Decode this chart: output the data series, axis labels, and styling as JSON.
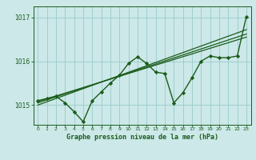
{
  "title": "Graphe pression niveau de la mer (hPa)",
  "bg_color": "#cce8e8",
  "grid_color": "#99cccc",
  "line_color": "#1a5c1a",
  "xlim": [
    -0.5,
    23.5
  ],
  "ylim": [
    1014.55,
    1017.25
  ],
  "yticks": [
    1015,
    1016,
    1017
  ],
  "xticks": [
    0,
    1,
    2,
    3,
    4,
    5,
    6,
    7,
    8,
    9,
    10,
    11,
    12,
    13,
    14,
    15,
    16,
    17,
    18,
    19,
    20,
    21,
    22,
    23
  ],
  "hours": [
    0,
    1,
    2,
    3,
    4,
    5,
    6,
    7,
    8,
    9,
    10,
    11,
    12,
    13,
    14,
    15,
    16,
    17,
    18,
    19,
    20,
    21,
    22,
    23
  ],
  "pressure_main": [
    1015.1,
    1015.15,
    1015.2,
    1015.05,
    1014.85,
    1014.62,
    1015.1,
    1015.3,
    1015.5,
    1015.68,
    1015.95,
    1016.1,
    1015.95,
    1015.75,
    1015.72,
    1015.05,
    1015.28,
    1015.62,
    1016.0,
    1016.12,
    1016.08,
    1016.08,
    1016.12,
    1017.02
  ],
  "trend1_x": [
    0,
    23
  ],
  "trend1_y": [
    1015.05,
    1016.62
  ],
  "trend2_x": [
    0,
    23
  ],
  "trend2_y": [
    1015.0,
    1016.72
  ],
  "trend3_x": [
    0,
    23
  ],
  "trend3_y": [
    1015.08,
    1016.55
  ]
}
